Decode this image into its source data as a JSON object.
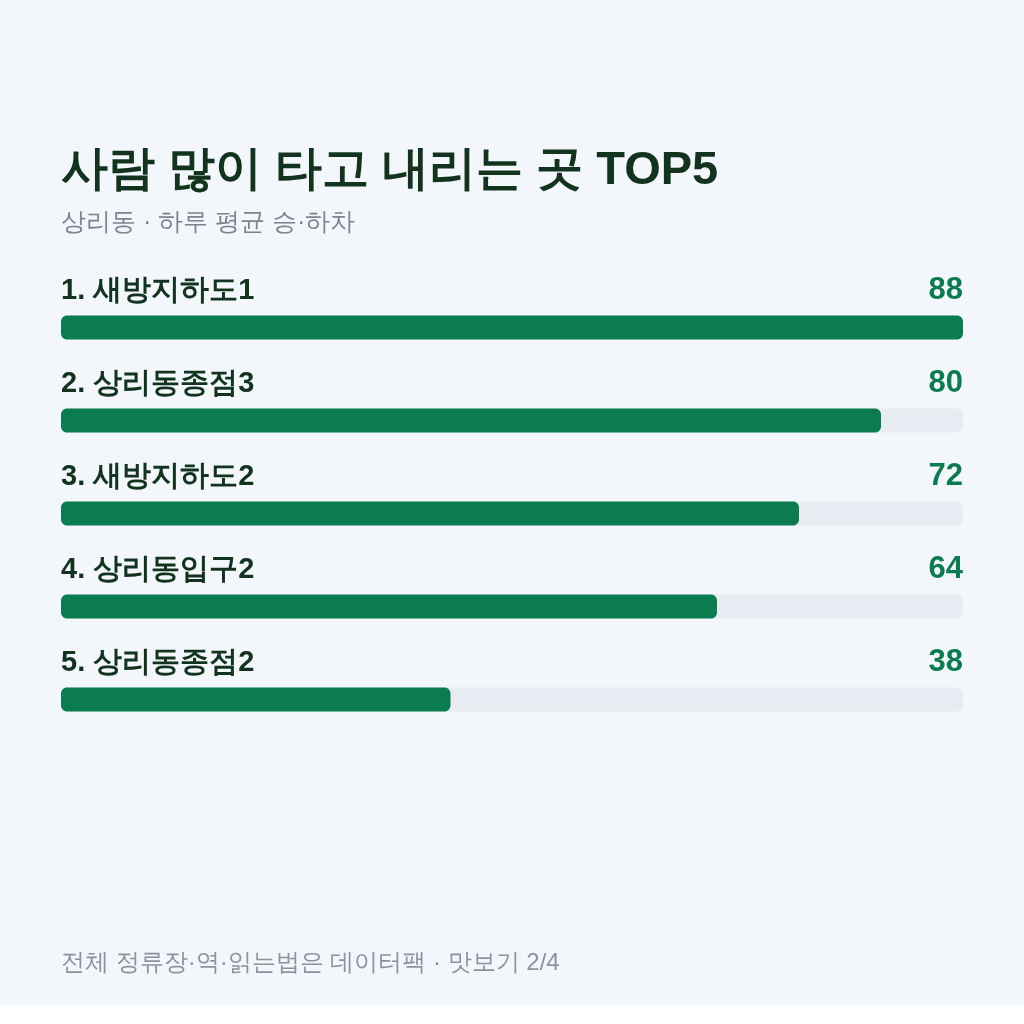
{
  "chart_data": {
    "type": "bar",
    "orientation": "horizontal",
    "title": "사람 많이 타고 내리는 곳 TOP5",
    "subtitle": "상리동 · 하루 평균 승·하차",
    "categories": [
      "1. 새방지하도1",
      "2. 상리동종점3",
      "3. 새방지하도2",
      "4. 상리동입구2",
      "5. 상리동종점2"
    ],
    "values": [
      88,
      80,
      72,
      64,
      38
    ],
    "color": "#0a7c50",
    "xlim": [
      0,
      88
    ],
    "data_labels": true,
    "tick_labels": "y",
    "annotations": [
      "전체 정류장·역·읽는법은 데이터팩 · 맛보기 2/4"
    ]
  }
}
